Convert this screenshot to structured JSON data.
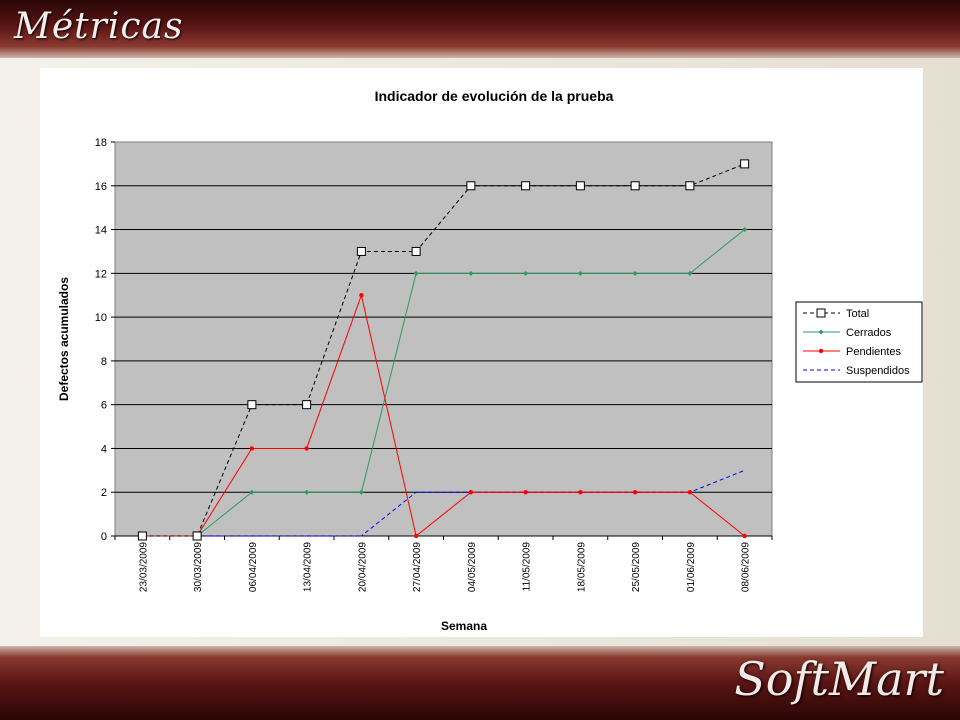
{
  "slide": {
    "title": "Métricas",
    "brand": "SoftMart"
  },
  "colors": {
    "plot_bg": "#c0c0c0",
    "total": "#000000",
    "cerrados": "#2e9a63",
    "pendientes": "#ff0000",
    "suspendidos": "#0000ff"
  },
  "chart_data": {
    "type": "line",
    "title": "Indicador de evolución de la prueba",
    "xlabel": "Semana",
    "ylabel": "Defectos acumulados",
    "ylim": [
      0,
      18
    ],
    "yticks": [
      "0",
      "2",
      "4",
      "6",
      "8",
      "10",
      "12",
      "14",
      "16",
      "18"
    ],
    "grid": true,
    "legend": "right",
    "categories": [
      "23/03/2009",
      "30/03/2009",
      "06/04/2009",
      "13/04/2009",
      "20/04/2009",
      "27/04/2009",
      "04/05/2009",
      "11/05/2009",
      "18/05/2009",
      "25/05/2009",
      "01/06/2009",
      "08/06/2009"
    ],
    "series": [
      {
        "name": "Total",
        "values": [
          0,
          0,
          6,
          6,
          13,
          13,
          16,
          16,
          16,
          16,
          16,
          17
        ]
      },
      {
        "name": "Cerrados",
        "values": [
          0,
          0,
          2,
          2,
          2,
          12,
          12,
          12,
          12,
          12,
          12,
          14
        ]
      },
      {
        "name": "Pendientes",
        "values": [
          0,
          0,
          4,
          4,
          11,
          0,
          2,
          2,
          2,
          2,
          2,
          0
        ]
      },
      {
        "name": "Suspendidos",
        "values": [
          0,
          0,
          0,
          0,
          0,
          2,
          2,
          2,
          2,
          2,
          2,
          3
        ]
      }
    ]
  }
}
